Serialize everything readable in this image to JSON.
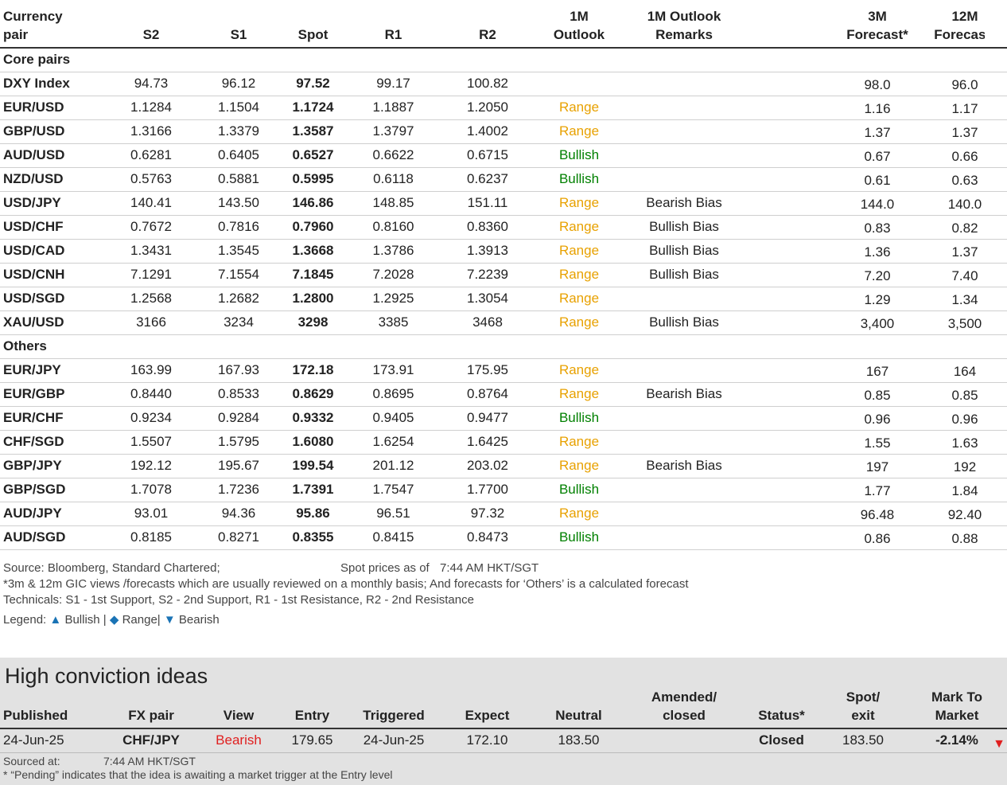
{
  "headers": {
    "pair": [
      "Currency",
      "pair"
    ],
    "s2": "S2",
    "s1": "S1",
    "spot": "Spot",
    "r1": "R1",
    "r2": "R2",
    "outlook": [
      "1M",
      "Outlook"
    ],
    "remarks": [
      "1M Outlook",
      "Remarks"
    ],
    "f3m": [
      "3M",
      "Forecast*"
    ],
    "f12m": [
      "12M",
      "Forecast*"
    ]
  },
  "sections": [
    {
      "title": "Core pairs",
      "rows": [
        {
          "pair": "DXY Index",
          "s2": "94.73",
          "s1": "96.12",
          "spot": "97.52",
          "r1": "99.17",
          "r2": "100.82",
          "outlook": "",
          "outlook_class": "",
          "remark": "",
          "f3m": "98.0",
          "f12m": "96.0"
        },
        {
          "pair": "EUR/USD",
          "s2": "1.1284",
          "s1": "1.1504",
          "spot": "1.1724",
          "r1": "1.1887",
          "r2": "1.2050",
          "outlook": "Range",
          "outlook_class": "range",
          "remark": "",
          "f3m": "1.16",
          "f12m": "1.17"
        },
        {
          "pair": "GBP/USD",
          "s2": "1.3166",
          "s1": "1.3379",
          "spot": "1.3587",
          "r1": "1.3797",
          "r2": "1.4002",
          "outlook": "Range",
          "outlook_class": "range",
          "remark": "",
          "f3m": "1.37",
          "f12m": "1.37"
        },
        {
          "pair": "AUD/USD",
          "s2": "0.6281",
          "s1": "0.6405",
          "spot": "0.6527",
          "r1": "0.6622",
          "r2": "0.6715",
          "outlook": "Bullish",
          "outlook_class": "bullish",
          "remark": "",
          "f3m": "0.67",
          "f12m": "0.66"
        },
        {
          "pair": "NZD/USD",
          "s2": "0.5763",
          "s1": "0.5881",
          "spot": "0.5995",
          "r1": "0.6118",
          "r2": "0.6237",
          "outlook": "Bullish",
          "outlook_class": "bullish",
          "remark": "",
          "f3m": "0.61",
          "f12m": "0.63"
        },
        {
          "pair": "USD/JPY",
          "s2": "140.41",
          "s1": "143.50",
          "spot": "146.86",
          "r1": "148.85",
          "r2": "151.11",
          "outlook": "Range",
          "outlook_class": "range",
          "remark": "Bearish Bias",
          "f3m": "144.0",
          "f12m": "140.0"
        },
        {
          "pair": "USD/CHF",
          "s2": "0.7672",
          "s1": "0.7816",
          "spot": "0.7960",
          "r1": "0.8160",
          "r2": "0.8360",
          "outlook": "Range",
          "outlook_class": "range",
          "remark": "Bullish Bias",
          "f3m": "0.83",
          "f12m": "0.82"
        },
        {
          "pair": "USD/CAD",
          "s2": "1.3431",
          "s1": "1.3545",
          "spot": "1.3668",
          "r1": "1.3786",
          "r2": "1.3913",
          "outlook": "Range",
          "outlook_class": "range",
          "remark": "Bullish Bias",
          "f3m": "1.36",
          "f12m": "1.37"
        },
        {
          "pair": "USD/CNH",
          "s2": "7.1291",
          "s1": "7.1554",
          "spot": "7.1845",
          "r1": "7.2028",
          "r2": "7.2239",
          "outlook": "Range",
          "outlook_class": "range",
          "remark": "Bullish Bias",
          "f3m": "7.20",
          "f12m": "7.40"
        },
        {
          "pair": "USD/SGD",
          "s2": "1.2568",
          "s1": "1.2682",
          "spot": "1.2800",
          "r1": "1.2925",
          "r2": "1.3054",
          "outlook": "Range",
          "outlook_class": "range",
          "remark": "",
          "f3m": "1.29",
          "f12m": "1.34"
        },
        {
          "pair": "XAU/USD",
          "s2": "3166",
          "s1": "3234",
          "spot": "3298",
          "r1": "3385",
          "r2": "3468",
          "outlook": "Range",
          "outlook_class": "range",
          "remark": "Bullish Bias",
          "f3m": "3,400",
          "f12m": "3,500"
        }
      ]
    },
    {
      "title": "Others",
      "rows": [
        {
          "pair": "EUR/JPY",
          "s2": "163.99",
          "s1": "167.93",
          "spot": "172.18",
          "r1": "173.91",
          "r2": "175.95",
          "outlook": "Range",
          "outlook_class": "range",
          "remark": "",
          "f3m": "167",
          "f12m": "164"
        },
        {
          "pair": "EUR/GBP",
          "s2": "0.8440",
          "s1": "0.8533",
          "spot": "0.8629",
          "r1": "0.8695",
          "r2": "0.8764",
          "outlook": "Range",
          "outlook_class": "range",
          "remark": "Bearish Bias",
          "f3m": "0.85",
          "f12m": "0.85"
        },
        {
          "pair": "EUR/CHF",
          "s2": "0.9234",
          "s1": "0.9284",
          "spot": "0.9332",
          "r1": "0.9405",
          "r2": "0.9477",
          "outlook": "Bullish",
          "outlook_class": "bullish",
          "remark": "",
          "f3m": "0.96",
          "f12m": "0.96"
        },
        {
          "pair": "CHF/SGD",
          "s2": "1.5507",
          "s1": "1.5795",
          "spot": "1.6080",
          "r1": "1.6254",
          "r2": "1.6425",
          "outlook": "Range",
          "outlook_class": "range",
          "remark": "",
          "f3m": "1.55",
          "f12m": "1.63"
        },
        {
          "pair": "GBP/JPY",
          "s2": "192.12",
          "s1": "195.67",
          "spot": "199.54",
          "r1": "201.12",
          "r2": "203.02",
          "outlook": "Range",
          "outlook_class": "range",
          "remark": "Bearish Bias",
          "f3m": "197",
          "f12m": "192"
        },
        {
          "pair": "GBP/SGD",
          "s2": "1.7078",
          "s1": "1.7236",
          "spot": "1.7391",
          "r1": "1.7547",
          "r2": "1.7700",
          "outlook": "Bullish",
          "outlook_class": "bullish",
          "remark": "",
          "f3m": "1.77",
          "f12m": "1.84"
        },
        {
          "pair": "AUD/JPY",
          "s2": "93.01",
          "s1": "94.36",
          "spot": "95.86",
          "r1": "96.51",
          "r2": "97.32",
          "outlook": "Range",
          "outlook_class": "range",
          "remark": "",
          "f3m": "96.48",
          "f12m": "92.40"
        },
        {
          "pair": "AUD/SGD",
          "s2": "0.8185",
          "s1": "0.8271",
          "spot": "0.8355",
          "r1": "0.8415",
          "r2": "0.8473",
          "outlook": "Bullish",
          "outlook_class": "bullish",
          "remark": "",
          "f3m": "0.86",
          "f12m": "0.88"
        }
      ]
    }
  ],
  "notes": {
    "source": "Source: Bloomberg, Standard Chartered;",
    "spot_label": "Spot prices as of",
    "spot_time": "7:44 AM HKT/SGT",
    "line2": "*3m & 12m GIC views /forecasts which are usually reviewed on a monthly basis; And forecasts for ‘Others’ is a calculated forecast",
    "line3": "Technicals: S1 - 1st Support, S2 - 2nd Support, R1 - 1st Resistance, R2 - 2nd Resistance",
    "legend_label": "Legend:",
    "legend_bullish": "Bullish",
    "legend_range": "Range",
    "legend_bearish": "Bearish",
    "sep": "|"
  },
  "hci": {
    "title": "High conviction ideas",
    "headers": {
      "published": "Published",
      "pair": "FX pair",
      "view": "View",
      "entry": "Entry",
      "triggered": "Triggered",
      "expect": "Expect",
      "neutral": "Neutral",
      "amended": [
        "Amended/",
        "closed"
      ],
      "status": "Status*",
      "spot": [
        "Spot/",
        "exit"
      ],
      "mtm": [
        "Mark To",
        "Market"
      ]
    },
    "row": {
      "published": "24-Jun-25",
      "pair": "CHF/JPY",
      "view": "Bearish",
      "entry": "179.65",
      "triggered": "24-Jun-25",
      "expect": "172.10",
      "neutral": "183.50",
      "amended": "",
      "status": "Closed",
      "spot": "183.50",
      "mtm": "-2.14%"
    },
    "sourced_label": "Sourced at:",
    "sourced_time": "7:44 AM HKT/SGT",
    "pending_note": "* “Pending” indicates that the idea is awaiting a market trigger at the Entry level"
  },
  "colors": {
    "range": "#e8a100",
    "bullish": "#008000",
    "bearish": "#e02020",
    "legend_symbols": "#1a73b5",
    "hci_background": "#e2e2e2"
  }
}
